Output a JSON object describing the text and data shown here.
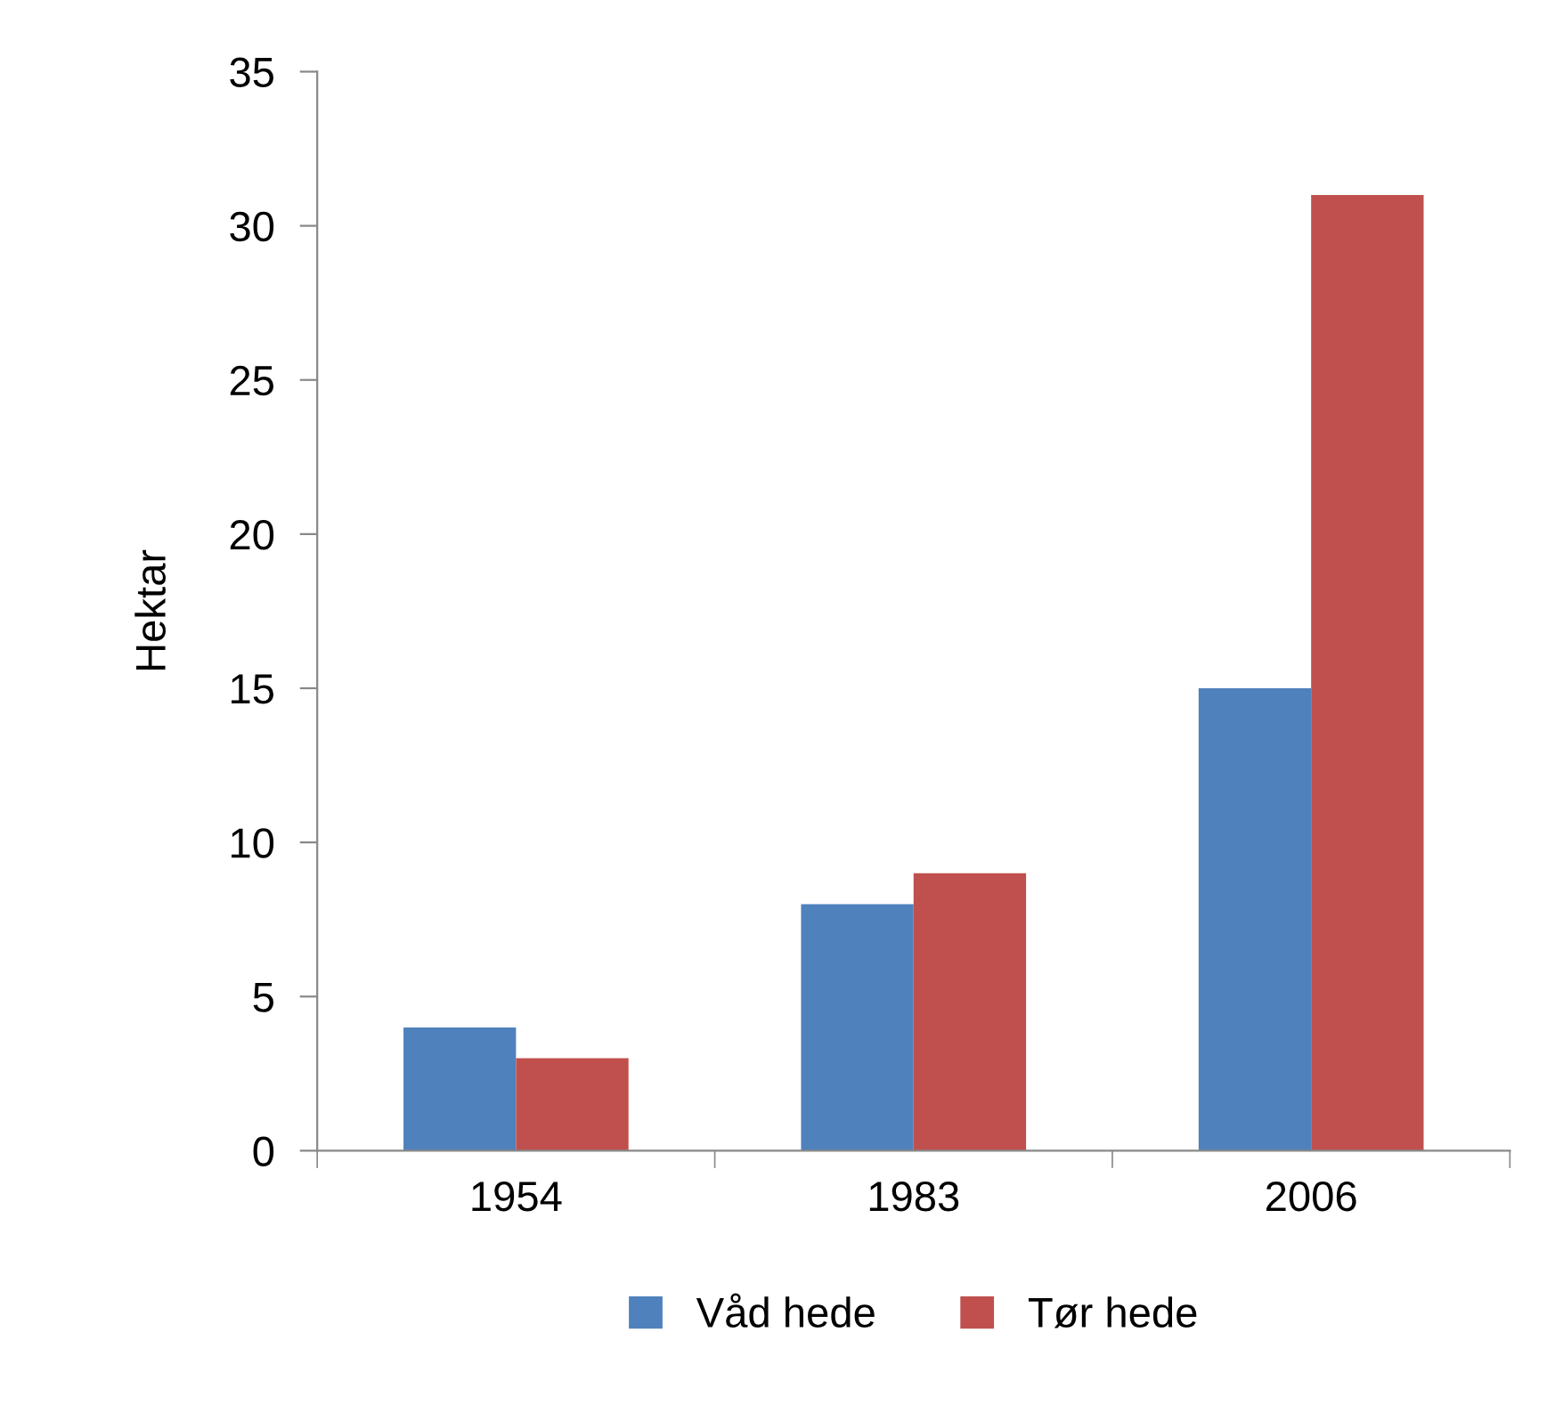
{
  "chart_data": {
    "type": "bar",
    "ylabel": "Hektar",
    "categories": [
      "1954",
      "1983",
      "2006"
    ],
    "series": [
      {
        "name": "Våd hede",
        "color": "#4f81bd",
        "values": [
          4,
          8,
          15
        ]
      },
      {
        "name": "Tør hede",
        "color": "#c0504d",
        "values": [
          3,
          9,
          31
        ]
      }
    ],
    "ylim": [
      0,
      35
    ],
    "yticks": [
      0,
      5,
      10,
      15,
      20,
      25,
      30,
      35
    ],
    "grid": false,
    "legend": "bottom"
  }
}
